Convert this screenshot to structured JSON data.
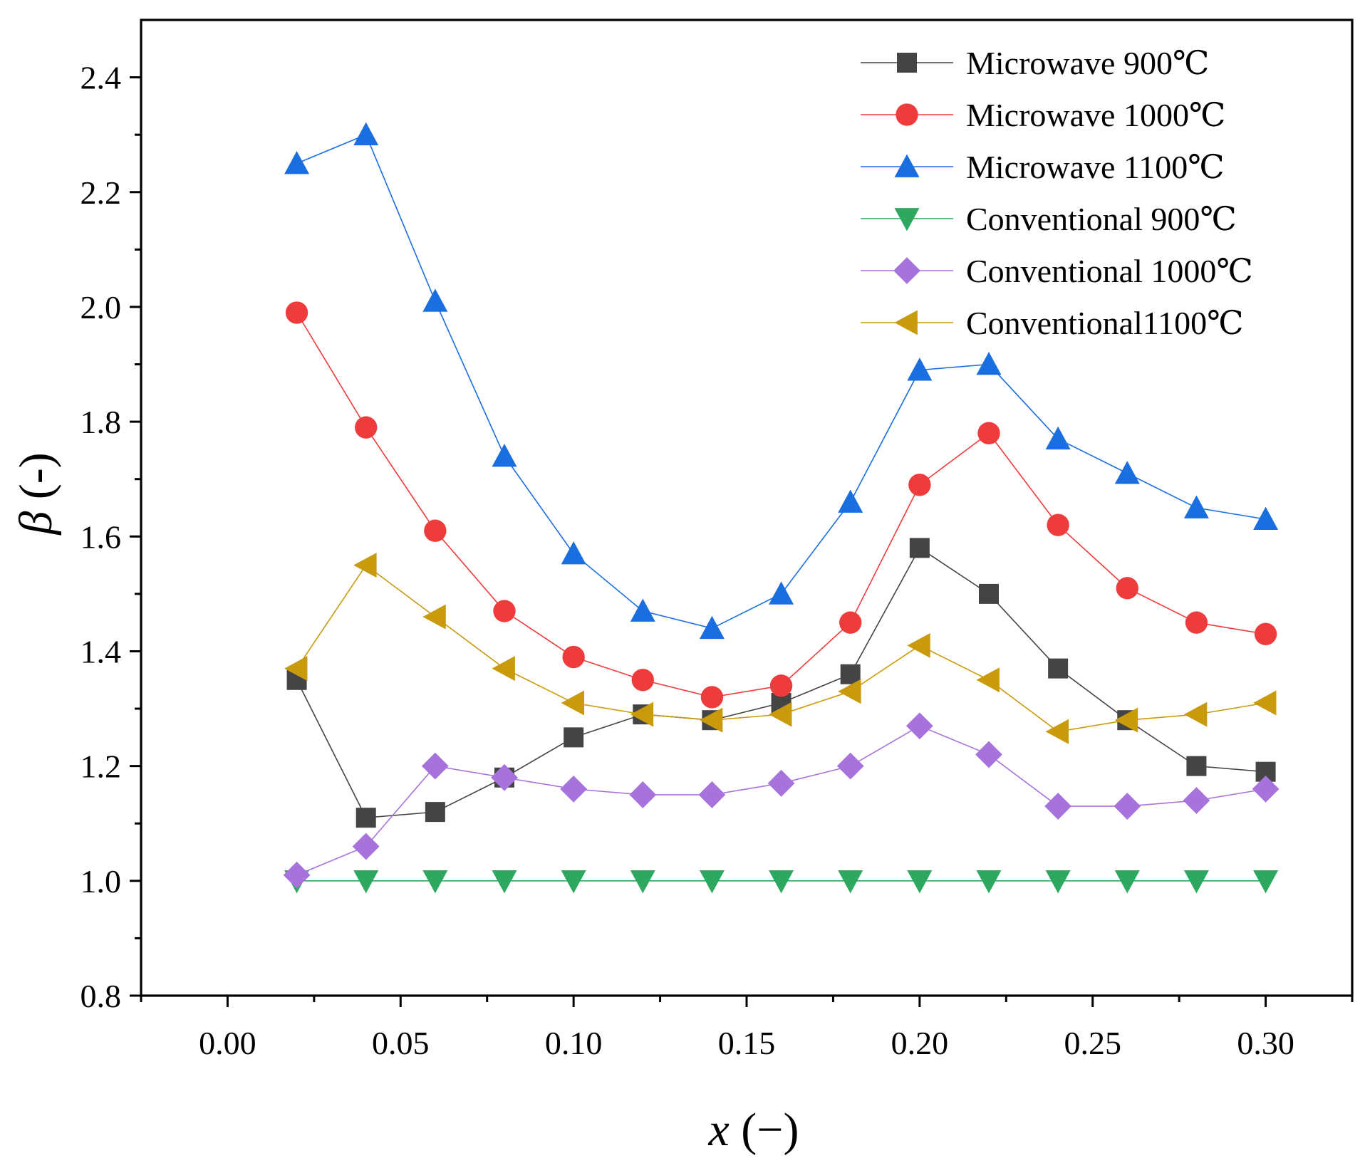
{
  "chart_data": {
    "type": "line",
    "title": "",
    "xlabel": "x (−)",
    "xlabel_var": "x",
    "xlabel_unit": " (−)",
    "ylabel": "β (-)",
    "ylabel_var": "β",
    "ylabel_unit": " (-)",
    "xlim": [
      -0.025,
      0.325
    ],
    "ylim": [
      0.8,
      2.5
    ],
    "xticks": [
      0.0,
      0.05,
      0.1,
      0.15,
      0.2,
      0.25,
      0.3
    ],
    "xtick_labels": [
      "0.00",
      "0.05",
      "0.10",
      "0.15",
      "0.20",
      "0.25",
      "0.30"
    ],
    "yticks": [
      0.8,
      1.0,
      1.2,
      1.4,
      1.6,
      1.8,
      2.0,
      2.2,
      2.4
    ],
    "ytick_labels": [
      "0.8",
      "1.0",
      "1.2",
      "1.4",
      "1.6",
      "1.8",
      "2.0",
      "2.2",
      "2.4"
    ],
    "grid": false,
    "legend_position": "top-right",
    "x": [
      0.02,
      0.04,
      0.06,
      0.08,
      0.1,
      0.12,
      0.14,
      0.16,
      0.18,
      0.2,
      0.22,
      0.24,
      0.26,
      0.28,
      0.3
    ],
    "series": [
      {
        "name": "Microwave 900℃",
        "marker": "square",
        "color": "#444444",
        "values": [
          1.35,
          1.11,
          1.12,
          1.18,
          1.25,
          1.29,
          1.28,
          1.31,
          1.36,
          1.58,
          1.5,
          1.37,
          1.28,
          1.2,
          1.19
        ]
      },
      {
        "name": "Microwave 1000℃",
        "marker": "circle",
        "color": "#ee3b3b",
        "values": [
          1.99,
          1.79,
          1.61,
          1.47,
          1.39,
          1.35,
          1.32,
          1.34,
          1.45,
          1.69,
          1.78,
          1.62,
          1.51,
          1.45,
          1.43
        ]
      },
      {
        "name": "Microwave 1100℃",
        "marker": "triangle-up",
        "color": "#1a6fe0",
        "values": [
          2.25,
          2.3,
          2.01,
          1.74,
          1.57,
          1.47,
          1.44,
          1.5,
          1.66,
          1.89,
          1.9,
          1.77,
          1.71,
          1.65,
          1.63
        ]
      },
      {
        "name": "Conventional 900℃",
        "marker": "triangle-down",
        "color": "#2ea860",
        "values": [
          1.0,
          1.0,
          1.0,
          1.0,
          1.0,
          1.0,
          1.0,
          1.0,
          1.0,
          1.0,
          1.0,
          1.0,
          1.0,
          1.0,
          1.0
        ]
      },
      {
        "name": "Conventional 1000℃",
        "marker": "diamond",
        "color": "#a872dc",
        "values": [
          1.01,
          1.06,
          1.2,
          1.18,
          1.16,
          1.15,
          1.15,
          1.17,
          1.2,
          1.27,
          1.22,
          1.13,
          1.13,
          1.14,
          1.16
        ]
      },
      {
        "name": "Conventional1100℃",
        "marker": "triangle-left",
        "color": "#c99a0b",
        "values": [
          1.37,
          1.55,
          1.46,
          1.37,
          1.31,
          1.29,
          1.28,
          1.29,
          1.33,
          1.41,
          1.35,
          1.26,
          1.28,
          1.29,
          1.31
        ]
      }
    ]
  }
}
